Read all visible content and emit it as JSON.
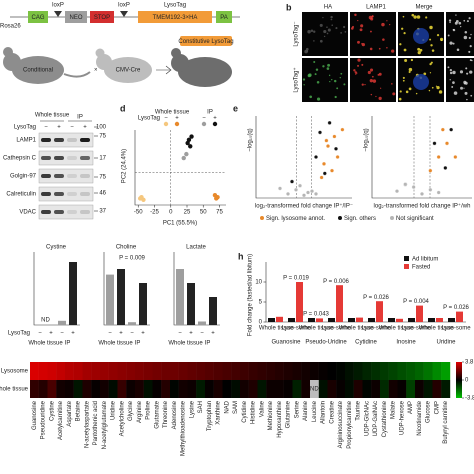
{
  "panel_labels": [
    "b",
    "d",
    "e",
    "h"
  ],
  "a": {
    "rosa26": "Rosa26",
    "loxp": "loxP",
    "lysotag": "LysoTag",
    "construct": [
      "CAG",
      "NEO",
      "STOP",
      "TMEM192-3×HA",
      "PA"
    ],
    "mice": [
      "Conditional",
      "CMV-Cre",
      "Constitutive LysoTag"
    ]
  },
  "b": {
    "columns": [
      "HA",
      "LAMP1",
      "Merge"
    ],
    "rows": [
      "LysoTag⁻",
      "LysoTag⁺"
    ]
  },
  "c": {
    "headers": [
      "Whole tissue",
      "IP"
    ],
    "row_label": "LysoTag",
    "lanes": [
      "−",
      "+",
      "−",
      "+"
    ],
    "proteins": [
      "LAMP1",
      "Cathepsin C",
      "Golgin-97",
      "Calreticulin",
      "VDAC"
    ],
    "markers": [
      100,
      75,
      17,
      75,
      46,
      37
    ]
  },
  "d": {
    "x_label": "PC1 (55.5%)",
    "y_label": "PC2 (24.4%)",
    "xlim": [
      -55,
      85
    ],
    "ylim": [
      -50,
      65
    ],
    "xticks": [
      -50,
      -25,
      0,
      25,
      50,
      75
    ],
    "legend_groups": [
      "Whole tissue",
      "IP"
    ],
    "legend_row_label": "LysoTag",
    "series": [
      {
        "name": "−",
        "color": "#f5c77e",
        "x": [
          -45,
          -42,
          -47
        ],
        "y": [
          -38,
          -42,
          -40
        ]
      },
      {
        "name": "+",
        "color": "#e8892b",
        "x": [
          68,
          72,
          70
        ],
        "y": [
          -35,
          -38,
          -40
        ]
      },
      {
        "name": "−",
        "color": "#9e9e9e",
        "x": [
          20,
          24
        ],
        "y": [
          22,
          28
        ]
      },
      {
        "name": "+",
        "color": "#111111",
        "x": [
          26,
          28,
          30,
          32
        ],
        "y": [
          45,
          50,
          40,
          55
        ]
      }
    ]
  },
  "e": {
    "y_label": "−log₁₀(q)",
    "legend": [
      {
        "name": "Sign. lysosome annot.",
        "color": "#e8892b"
      },
      {
        "name": "Sign. others",
        "color": "#111111"
      },
      {
        "name": "Not significant",
        "color": "#b5b5b5"
      }
    ],
    "plots": [
      {
        "x_label": "log₂-transformed fold change IP⁺/IP⁻",
        "xlim": [
          -6,
          6
        ],
        "ylim": [
          0,
          6
        ],
        "series": [
          {
            "x": [
              2.5,
              3,
              3.8,
              4.2,
              2.2,
              3.5,
              4.8,
              2.8
            ],
            "y": [
              2.5,
              3.8,
              4.5,
              3,
              1.5,
              2,
              5,
              4.2
            ]
          },
          {
            "x": [
              1.5,
              2,
              3.2,
              -1.5,
              2.6,
              4
            ],
            "y": [
              3,
              4.8,
              5.5,
              1.2,
              1.8,
              3.6
            ]
          },
          {
            "x": [
              -2,
              -1,
              0,
              1,
              -0.5,
              0.5,
              -3,
              1.5
            ],
            "y": [
              0.3,
              0.6,
              0.2,
              0.5,
              0.9,
              0.4,
              0.7,
              0.3
            ]
          }
        ]
      },
      {
        "x_label": "log₂-transformed fold change IP⁺/wh",
        "xlim": [
          -6,
          6
        ],
        "ylim": [
          0,
          6
        ],
        "series": [
          {
            "x": [
              1,
              2,
              3,
              4,
              2.5
            ],
            "y": [
              2,
              3,
              4,
              3,
              5
            ]
          },
          {
            "x": [
              1.5,
              2.8,
              3.5,
              -2
            ],
            "y": [
              4,
              2.2,
              5,
              1
            ]
          },
          {
            "x": [
              -3,
              -1,
              0,
              1,
              -2,
              2
            ],
            "y": [
              0.5,
              0.8,
              0.3,
              0.6,
              1,
              0.4
            ]
          }
        ]
      }
    ]
  },
  "f": {
    "row_label": "LysoTag",
    "lanes": [
      "−",
      "+",
      "−",
      "+"
    ],
    "groups": [
      "Whole tissue",
      "IP"
    ],
    "nd_label": "ND",
    "colors": [
      "#9e9e9e",
      "#222222"
    ],
    "charts": [
      {
        "title": "Cystine",
        "values": [
          null,
          null,
          0.3,
          4.5
        ],
        "ylim": [
          0,
          5
        ]
      },
      {
        "title": "Choline",
        "values": [
          18,
          20,
          1,
          15
        ],
        "ylim": [
          0,
          25
        ],
        "p_label": "P = 0.009"
      },
      {
        "title": "Lactate",
        "values": [
          8,
          6,
          0.5,
          4
        ],
        "ylim": [
          0,
          10
        ]
      }
    ]
  },
  "h": {
    "y_label": "Fold change (fasted/ad libitum)",
    "ylim": [
      0,
      14
    ],
    "yticks": [
      0,
      5,
      10
    ],
    "categories": [
      "Whole tissue",
      "Lyso-some",
      "Whole tissue",
      "Lyso-some",
      "Whole tissue",
      "Lyso-some",
      "Whole tissue",
      "Lyso-some",
      "Whole tissue",
      "Lyso-some"
    ],
    "groups": [
      "Guanosine",
      "Pseudo-Uridine",
      "Cytidine",
      "Inosine",
      "Uridine"
    ],
    "series": [
      {
        "name": "Ad libitum",
        "color": "#111111",
        "values": [
          1,
          1,
          1,
          1,
          1,
          1,
          1,
          1,
          1,
          1
        ]
      },
      {
        "name": "Fasted",
        "color": "#e53935",
        "values": [
          1.3,
          10,
          0.9,
          9.2,
          1.1,
          5.2,
          0.8,
          4.1,
          1,
          2.6
        ]
      }
    ],
    "p_values": [
      null,
      "P = 0.019",
      "P = 0.043",
      "P = 0.006",
      null,
      "P = 0.026",
      null,
      "P = 0.004",
      null,
      "P = 0.026"
    ]
  },
  "heatmap": {
    "rows": [
      "Lysosome",
      "Whole tissue"
    ],
    "nd_label": "ND",
    "lim": [
      -3.8,
      3.8
    ],
    "ticks": [
      3.8,
      0,
      -3.8
    ],
    "columns": [
      "Guanosine",
      "Pseudouridine",
      "Cystine",
      "Acetylcarnitine",
      "Aspartate",
      "Betaine",
      "N-acetylaspartate",
      "Pantothenic acid",
      "N-acetylglutamate",
      "Uridine",
      "Acetylcholine",
      "Glycine",
      "Arginine",
      "Proline",
      "Glutamate",
      "Threonine",
      "Adenosine",
      "Methylthioadenosine",
      "Lysine",
      "SAH",
      "Tryptophan",
      "Xanthine",
      "NAD",
      "SAM",
      "Cytidine",
      "Histidine",
      "Valine",
      "Methionine",
      "Hypoxanthine",
      "Glutamine",
      "Serine",
      "Alanine",
      "Leucine",
      "Allantoin",
      "Creatine",
      "Argininosuccinate",
      "Propionylcarnitine",
      "Taurine",
      "UDP-GlcNAc",
      "UDP-GalNAc",
      "Cystathionine",
      "Malate",
      "UDP-hexose",
      "AMP",
      "Nicotinamide",
      "Glucose",
      "CMP",
      "Butyryl carnitine"
    ],
    "values": [
      [
        3.6,
        3.5,
        3.4,
        3.2,
        3,
        2.9,
        2.7,
        2.6,
        2.5,
        2.4,
        2.3,
        2.2,
        2.1,
        2,
        1.9,
        1.8,
        1.8,
        1.7,
        1.6,
        1.5,
        1.4,
        1.3,
        1.2,
        1.1,
        1,
        0.9,
        0.8,
        0.7,
        0.6,
        0.5,
        0.4,
        0.3,
        0.2,
        0.1,
        0,
        -0.1,
        -0.3,
        -0.5,
        -0.7,
        -0.9,
        -1.1,
        -1.3,
        -1.5,
        -1.7,
        -1.9,
        -2.2,
        -2.6,
        -3
      ],
      [
        0.8,
        0.6,
        1.2,
        0.3,
        0.2,
        -0.4,
        0.5,
        0.1,
        0.3,
        -0.2,
        0.9,
        0.2,
        0.4,
        -0.3,
        0.1,
        0.6,
        -0.1,
        0.3,
        0.2,
        -0.5,
        0.1,
        0.4,
        0,
        -0.2,
        0.3,
        0.5,
        -0.4,
        0.2,
        0.2,
        0.1,
        -0.6,
        0.3,
        null,
        -0.3,
        0.4,
        0.1,
        -0.2,
        0.5,
        -0.1,
        0.2,
        -0.8,
        0.3,
        0.1,
        -1.2,
        0.2,
        -0.4,
        0.6,
        -0.5
      ]
    ]
  }
}
